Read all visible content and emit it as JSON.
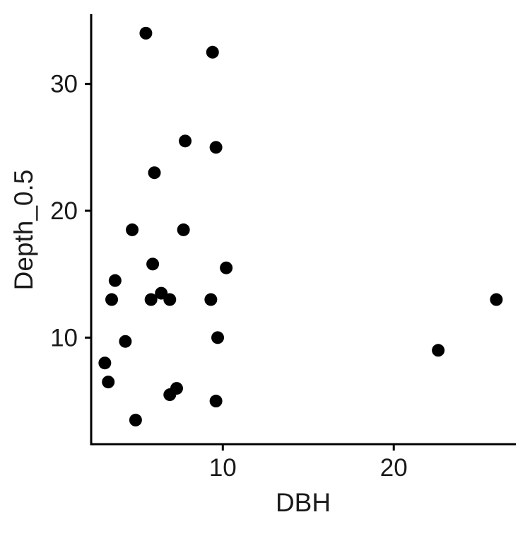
{
  "chart_data": {
    "type": "scatter",
    "title": "",
    "xlabel": "DBH",
    "ylabel": "Depth_0.5",
    "xlim": [
      2.3,
      27.1
    ],
    "ylim": [
      1.6,
      35.5
    ],
    "x_ticks": [
      10,
      20
    ],
    "x_tick_labels": [
      "10",
      "20"
    ],
    "y_ticks": [
      10,
      20,
      30
    ],
    "y_tick_labels": [
      "10",
      "20",
      "30"
    ],
    "grid": false,
    "legend": "none",
    "point_color": "#000000",
    "points": [
      {
        "x": 5.5,
        "y": 34
      },
      {
        "x": 9.4,
        "y": 32.5
      },
      {
        "x": 7.8,
        "y": 25.5
      },
      {
        "x": 9.6,
        "y": 25
      },
      {
        "x": 6.0,
        "y": 23
      },
      {
        "x": 4.7,
        "y": 18.5
      },
      {
        "x": 7.7,
        "y": 18.5
      },
      {
        "x": 5.9,
        "y": 15.8
      },
      {
        "x": 10.2,
        "y": 15.5
      },
      {
        "x": 3.7,
        "y": 14.5
      },
      {
        "x": 6.4,
        "y": 13.5
      },
      {
        "x": 3.5,
        "y": 13
      },
      {
        "x": 5.8,
        "y": 13
      },
      {
        "x": 6.9,
        "y": 13
      },
      {
        "x": 9.3,
        "y": 13
      },
      {
        "x": 26.0,
        "y": 13
      },
      {
        "x": 9.7,
        "y": 10
      },
      {
        "x": 4.3,
        "y": 9.7
      },
      {
        "x": 22.6,
        "y": 9
      },
      {
        "x": 3.1,
        "y": 8
      },
      {
        "x": 3.3,
        "y": 6.5
      },
      {
        "x": 7.3,
        "y": 6
      },
      {
        "x": 6.9,
        "y": 5.5
      },
      {
        "x": 9.6,
        "y": 5
      },
      {
        "x": 4.9,
        "y": 3.5
      }
    ]
  }
}
